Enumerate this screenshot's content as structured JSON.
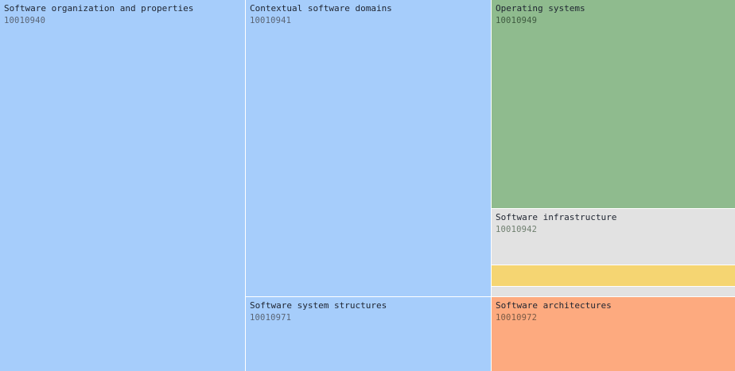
{
  "treemap": {
    "tiles": [
      {
        "title": "Software organization and properties",
        "code": "10010940",
        "color": "#a6cdfb"
      },
      {
        "title": "Contextual software domains",
        "code": "10010941",
        "color": "#a6cdfb"
      },
      {
        "title": "Software system structures",
        "code": "10010971",
        "color": "#a6cdfb"
      },
      {
        "title": "Operating systems",
        "code": "10010949",
        "color": "#8fbb8e"
      },
      {
        "title": "Software infrastructure",
        "code": "10010942",
        "color": "#e2e2e2"
      },
      {
        "title": "Software architectures",
        "code": "10010972",
        "color": "#fdaa7f"
      }
    ],
    "unlabeled_tile_colors": [
      "#f5d572",
      "#e2e2e2"
    ]
  }
}
